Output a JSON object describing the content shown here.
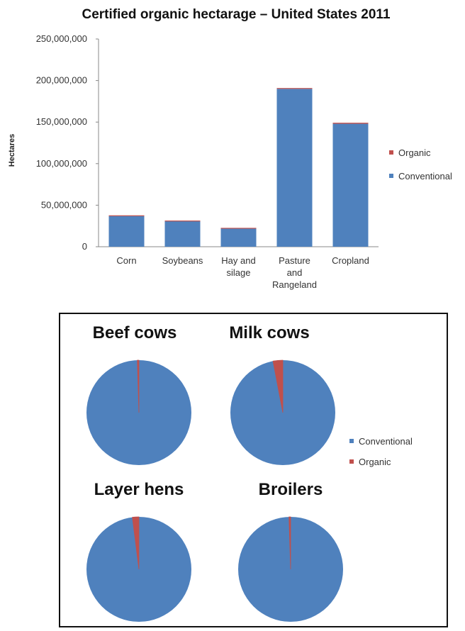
{
  "chart_data": [
    {
      "type": "bar",
      "stacked": true,
      "title": "Certified organic hectarage – United States 2011",
      "ylabel": "Hectares",
      "xlabel": "",
      "ylim": [
        0,
        250000000
      ],
      "yticks": [
        0,
        50000000,
        100000000,
        150000000,
        200000000,
        250000000
      ],
      "ytick_labels": [
        "0",
        "50,000,000",
        "100,000,000",
        "150,000,000",
        "200,000,000",
        "250,000,000"
      ],
      "categories": [
        [
          "Corn"
        ],
        [
          "Soybeans"
        ],
        [
          "Hay and",
          "silage"
        ],
        [
          "Pasture",
          "and",
          "Rangeland"
        ],
        [
          "Cropland"
        ]
      ],
      "series": [
        {
          "name": "Conventional",
          "color": "#4F81BD",
          "values": [
            37000000,
            31000000,
            22000000,
            190000000,
            148000000
          ]
        },
        {
          "name": "Organic",
          "color": "#C0504D",
          "values": [
            800000,
            500000,
            700000,
            1000000,
            1200000
          ]
        }
      ],
      "legend": {
        "placement": "right",
        "entries": [
          "Organic",
          "Conventional"
        ]
      },
      "grid": false
    },
    {
      "type": "pie",
      "panel_border": true,
      "legend": {
        "placement": "right",
        "entries": [
          "Conventional",
          "Organic"
        ]
      },
      "colors": {
        "Conventional": "#4F81BD",
        "Organic": "#C0504D"
      },
      "pies": [
        {
          "title": "Beef cows",
          "values": {
            "Conventional": 99.5,
            "Organic": 0.5
          }
        },
        {
          "title": "Milk cows",
          "values": {
            "Conventional": 97.0,
            "Organic": 3.0
          }
        },
        {
          "title": "Layer hens",
          "values": {
            "Conventional": 98.0,
            "Organic": 2.0
          }
        },
        {
          "title": "Broilers",
          "values": {
            "Conventional": 99.5,
            "Organic": 0.5
          }
        }
      ]
    }
  ]
}
